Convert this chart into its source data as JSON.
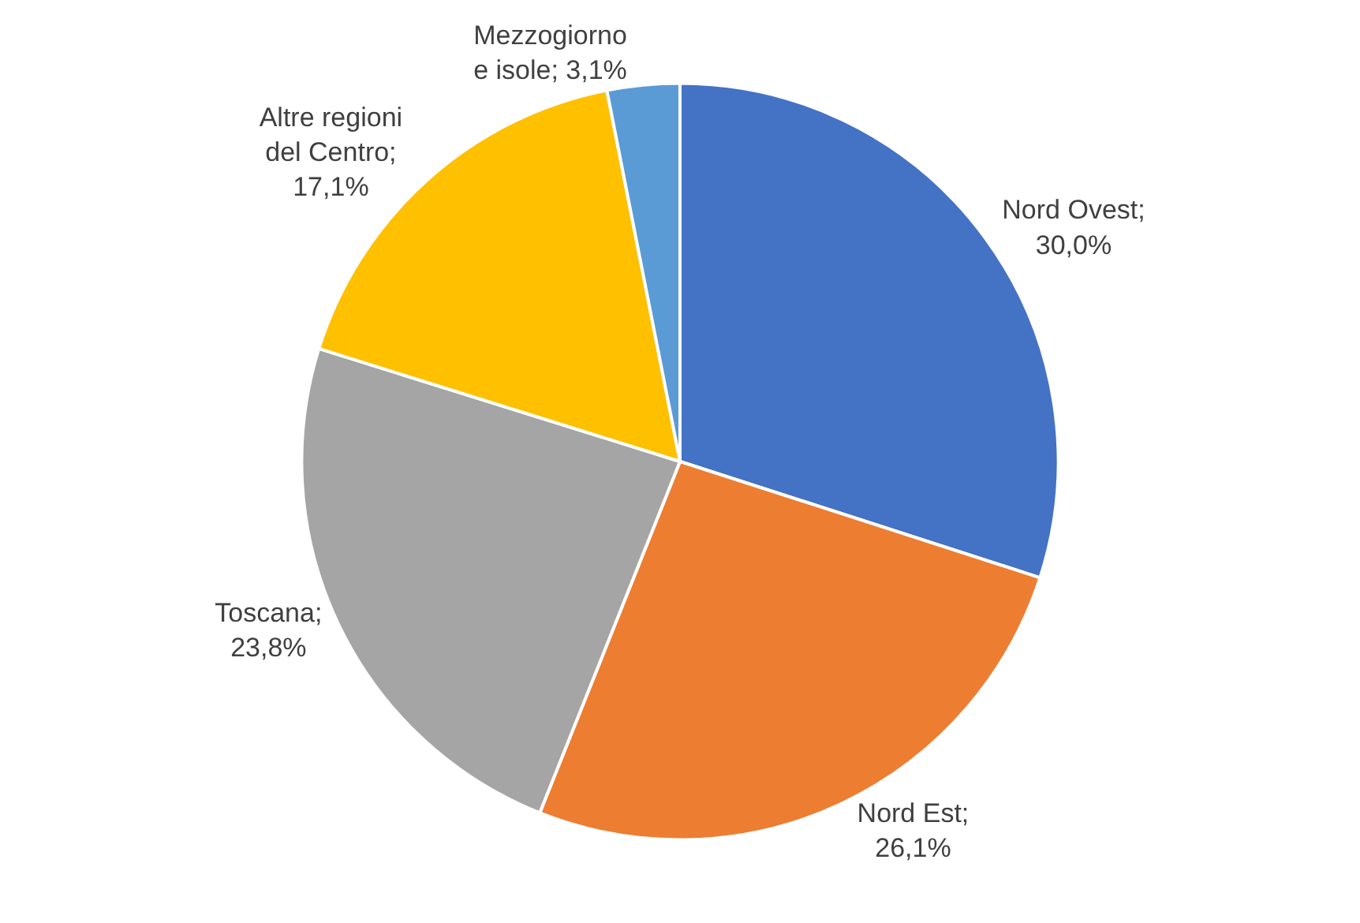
{
  "chart_data": {
    "type": "pie",
    "categories": [
      "Nord Ovest",
      "Nord Est",
      "Toscana",
      "Altre regioni\ndel Centro",
      "Mezzogiorno\ne isole"
    ],
    "values": [
      30.0,
      26.1,
      23.8,
      17.1,
      3.1
    ],
    "colors": [
      "#4472c4",
      "#ed7d31",
      "#a5a5a5",
      "#ffc000",
      "#5b9bd5"
    ],
    "value_labels": [
      ";\n30,0%",
      ";\n26,1%",
      ";\n23,8%",
      ";\n17,1%",
      "; 3,1%"
    ],
    "legend": false
  }
}
